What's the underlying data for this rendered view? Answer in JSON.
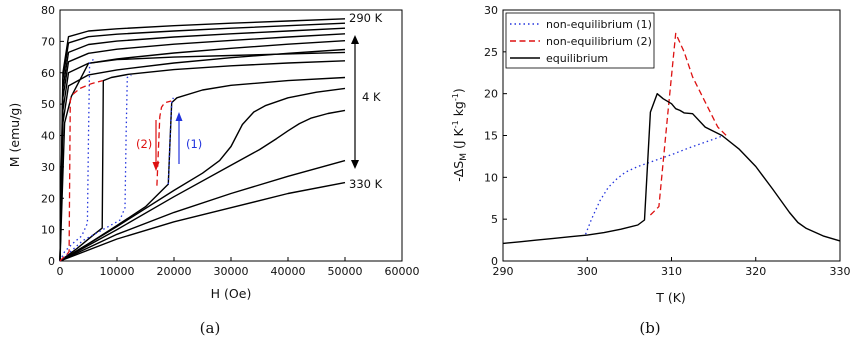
{
  "chart_data": [
    {
      "type": "line",
      "caption": "(a)",
      "xlabel": "H (Oe)",
      "ylabel": "M (emu/g)",
      "xlim": [
        0,
        60000
      ],
      "ylim": [
        0,
        80
      ],
      "xticks": [
        0,
        10000,
        20000,
        30000,
        40000,
        50000,
        60000
      ],
      "yticks": [
        0,
        10,
        20,
        30,
        40,
        50,
        60,
        70,
        80
      ],
      "annotations": {
        "top": "290 K",
        "bottom": "330 K",
        "step": "4 K",
        "field_up": "(1)",
        "field_down": "(2)"
      },
      "colors": {
        "solid": "#000000",
        "dotted": "#2233dd",
        "dashed": "#dd1111"
      },
      "series": [
        {
          "style": "solid",
          "x": [
            0,
            500,
            1500,
            5000,
            10000,
            20000,
            30000,
            40000,
            50000
          ],
          "y": [
            0,
            60,
            71.5,
            73.3,
            74.0,
            75.0,
            75.8,
            76.5,
            77.2
          ]
        },
        {
          "style": "solid",
          "x": [
            0,
            500,
            1500,
            5000,
            10000,
            20000,
            30000,
            40000,
            50000
          ],
          "y": [
            0,
            58,
            69.5,
            71.5,
            72.3,
            73.3,
            74.2,
            75.0,
            75.8
          ]
        },
        {
          "style": "solid",
          "x": [
            0,
            500,
            1500,
            5000,
            10000,
            20000,
            30000,
            40000,
            50000
          ],
          "y": [
            0,
            55,
            66.5,
            69.0,
            70.1,
            71.4,
            72.4,
            73.3,
            74.2
          ]
        },
        {
          "style": "solid",
          "x": [
            0,
            500,
            1500,
            5000,
            10000,
            20000,
            30000,
            40000,
            50000
          ],
          "y": [
            0,
            52,
            63.5,
            66.2,
            67.5,
            69.1,
            70.3,
            71.4,
            72.4
          ]
        },
        {
          "style": "solid",
          "x": [
            0,
            500,
            1500,
            5000,
            10000,
            20000,
            30000,
            40000,
            50000
          ],
          "y": [
            0,
            48,
            60.0,
            63.0,
            64.4,
            66.3,
            67.8,
            69.1,
            70.2
          ]
        },
        {
          "style": "solid",
          "x": [
            0,
            500,
            1500,
            5000,
            10000,
            20000,
            30000,
            40000,
            50000
          ],
          "y": [
            0,
            44,
            55.8,
            59.3,
            60.9,
            63.1,
            64.8,
            66.2,
            67.4
          ]
        },
        {
          "style": "solid",
          "x": [
            0,
            800,
            2000,
            5000,
            10000,
            20000,
            30000,
            40000,
            50000
          ],
          "y": [
            0,
            44,
            52.5,
            63.0,
            64.2,
            65.0,
            65.5,
            66.0,
            66.5
          ]
        },
        {
          "style": "solid",
          "x": [
            0,
            3000,
            6000,
            7400,
            7500,
            7600,
            9000,
            12000,
            20000,
            30000,
            40000,
            50000
          ],
          "y": [
            0,
            4.0,
            8.5,
            10.5,
            35,
            57.5,
            58.5,
            59.5,
            61.0,
            62.2,
            63.1,
            63.8
          ]
        },
        {
          "style": "solid",
          "x": [
            0,
            5000,
            10000,
            15000,
            19000,
            19300,
            19600,
            20500,
            25000,
            30000,
            40000,
            50000
          ],
          "y": [
            0,
            5.5,
            11.3,
            17.3,
            24.5,
            38,
            50.5,
            52.0,
            54.5,
            56.0,
            57.5,
            58.5
          ]
        },
        {
          "style": "solid",
          "x": [
            0,
            10000,
            20000,
            25000,
            28000,
            30000,
            31000,
            32000,
            34000,
            36000,
            40000,
            45000,
            50000
          ],
          "y": [
            0,
            11.0,
            22.5,
            28.0,
            32.0,
            36.5,
            40.0,
            43.5,
            47.5,
            49.5,
            52.0,
            53.8,
            55.0
          ]
        },
        {
          "style": "solid",
          "x": [
            0,
            10000,
            20000,
            30000,
            35000,
            38000,
            40000,
            42000,
            44000,
            47000,
            50000
          ],
          "y": [
            0,
            10.0,
            20.5,
            30.5,
            35.5,
            39.0,
            41.5,
            43.8,
            45.5,
            47.0,
            48.0
          ]
        },
        {
          "style": "solid",
          "x": [
            0,
            10000,
            20000,
            30000,
            40000,
            50000
          ],
          "y": [
            0,
            8.5,
            15.5,
            21.5,
            27.0,
            32.0
          ]
        },
        {
          "style": "solid",
          "x": [
            0,
            10000,
            20000,
            30000,
            40000,
            50000
          ],
          "y": [
            0,
            7.0,
            12.5,
            17.0,
            21.5,
            25.0
          ]
        },
        {
          "style": "dotted",
          "x": [
            0,
            800,
            2200,
            3800,
            4800,
            5000,
            5200,
            6000
          ],
          "y": [
            0,
            3.0,
            5.5,
            8.0,
            12.0,
            40,
            63.0,
            64.5
          ]
        },
        {
          "style": "dotted",
          "x": [
            0,
            4000,
            8000,
            10500,
            11400,
            11600,
            11800,
            12500
          ],
          "y": [
            0,
            6.5,
            10.5,
            13.0,
            17.0,
            40,
            58.5,
            59.2
          ]
        },
        {
          "style": "dotted",
          "x": [
            19000,
            19300,
            19600,
            19900
          ],
          "y": [
            24.5,
            38,
            51.0,
            52.0
          ]
        },
        {
          "style": "dashed",
          "x": [
            0,
            500,
            1200,
            1600,
            1700,
            1800,
            2200,
            3500,
            5500,
            7500
          ],
          "y": [
            0,
            1.0,
            2.0,
            3.0,
            28,
            51.5,
            53.0,
            55.0,
            56.5,
            57.5
          ]
        },
        {
          "style": "dashed",
          "x": [
            17000,
            17500,
            17800,
            18200,
            18500,
            19500
          ],
          "y": [
            24.0,
            46.0,
            49.0,
            50.0,
            50.5,
            51.0
          ]
        }
      ]
    },
    {
      "type": "line",
      "caption": "(b)",
      "xlabel": "T (K)",
      "ylabel": "-ΔS_M (J K^-1 kg^-1)",
      "xlim": [
        290,
        330
      ],
      "ylim": [
        0,
        30
      ],
      "xticks": [
        290,
        300,
        310,
        320,
        330
      ],
      "yticks": [
        0,
        5,
        10,
        15,
        20,
        25,
        30
      ],
      "legend_position": "top-left",
      "series": [
        {
          "name": "non-equilibrium (1)",
          "style": "dotted",
          "color": "#2233dd",
          "x": [
            299.8,
            300.5,
            301.5,
            302.5,
            303.5,
            304.5,
            306,
            308,
            310,
            312,
            314,
            316.2
          ],
          "y": [
            3.2,
            5.0,
            7.2,
            8.8,
            9.8,
            10.6,
            11.3,
            12.0,
            12.7,
            13.5,
            14.2,
            15.0
          ]
        },
        {
          "name": "non-equilibrium (2)",
          "style": "dashed",
          "color": "#dd1111",
          "x": [
            307.5,
            308.5,
            309.5,
            310.5,
            311.5,
            312.5,
            313.5,
            314.5,
            315.5,
            316.5
          ],
          "y": [
            5.5,
            6.5,
            17.0,
            27.2,
            25.0,
            22.0,
            20.0,
            18.0,
            16.0,
            15.0
          ]
        },
        {
          "name": "equilibrium",
          "style": "solid",
          "color": "#000000",
          "x": [
            290,
            292,
            294,
            296,
            298,
            300,
            302,
            304,
            306,
            306.8,
            307.5,
            308.3,
            309,
            310,
            310.5,
            311,
            311.5,
            312.5,
            314,
            316,
            318,
            320,
            322,
            324,
            325,
            326,
            328,
            330
          ],
          "y": [
            2.1,
            2.3,
            2.5,
            2.7,
            2.9,
            3.1,
            3.4,
            3.8,
            4.3,
            4.9,
            17.8,
            20.0,
            19.4,
            18.8,
            18.2,
            18.0,
            17.7,
            17.6,
            16.0,
            15.0,
            13.4,
            11.3,
            8.6,
            5.8,
            4.6,
            3.9,
            3.0,
            2.4
          ]
        }
      ]
    }
  ]
}
